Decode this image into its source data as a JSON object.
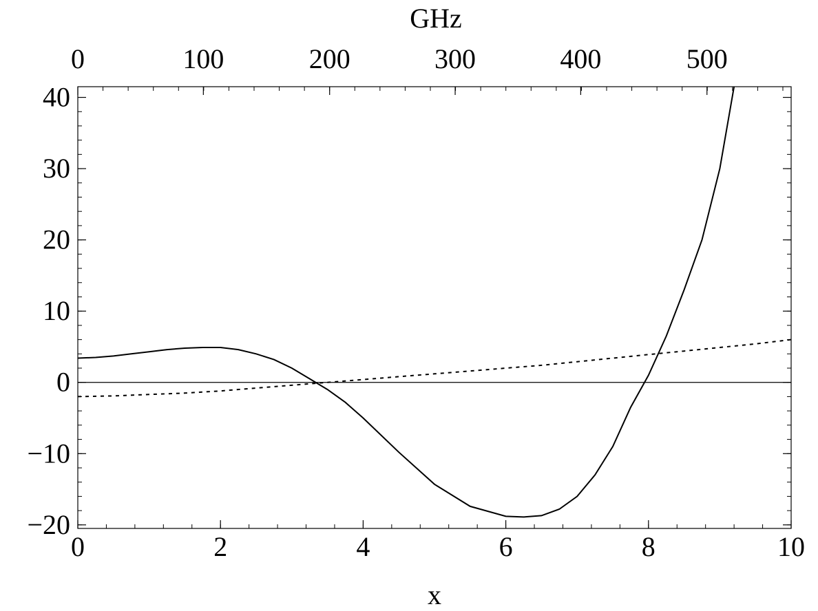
{
  "chart_data": {
    "type": "line",
    "xlabel": "x",
    "x2label": "GHz",
    "xlim": [
      0,
      10
    ],
    "ylim": [
      -20.5,
      41.5
    ],
    "x_ticks": [
      0,
      2,
      4,
      6,
      8,
      10
    ],
    "x2_ticks": [
      {
        "label": "0",
        "x": 0
      },
      {
        "label": "100",
        "x": 1.76
      },
      {
        "label": "200",
        "x": 3.53
      },
      {
        "label": "300",
        "x": 5.29
      },
      {
        "label": "400",
        "x": 7.05
      },
      {
        "label": "500",
        "x": 8.82
      }
    ],
    "y_ticks": [
      -20,
      -10,
      0,
      10,
      20,
      30,
      40
    ],
    "y_tick_labels": [
      "−20",
      "−10",
      "0",
      "10",
      "20",
      "30",
      "40"
    ],
    "reference_line_y": 0,
    "grid": false,
    "series": [
      {
        "style": "solid",
        "color": "#000000",
        "x": [
          0,
          0.25,
          0.5,
          0.75,
          1.0,
          1.25,
          1.5,
          1.75,
          2.0,
          2.25,
          2.5,
          2.75,
          3.0,
          3.25,
          3.5,
          3.75,
          4.0,
          4.5,
          5.0,
          5.5,
          6.0,
          6.25,
          6.5,
          6.75,
          7.0,
          7.25,
          7.5,
          7.75,
          8.0,
          8.25,
          8.5,
          8.75,
          9.0,
          9.2
        ],
        "y": [
          3.4,
          3.5,
          3.7,
          4.0,
          4.3,
          4.6,
          4.8,
          4.9,
          4.9,
          4.6,
          4.0,
          3.2,
          2.0,
          0.5,
          -1.0,
          -2.8,
          -5.0,
          -9.8,
          -14.3,
          -17.4,
          -18.8,
          -18.9,
          -18.7,
          -17.8,
          -16.0,
          -13.0,
          -9.0,
          -3.5,
          1.0,
          6.5,
          13.0,
          20.0,
          30.0,
          41.5
        ]
      },
      {
        "style": "dotted",
        "color": "#000000",
        "x": [
          0,
          0.5,
          1,
          1.5,
          2,
          2.5,
          3,
          3.5,
          4,
          4.5,
          5,
          5.5,
          6,
          6.5,
          7,
          7.5,
          8,
          8.5,
          9,
          9.5,
          10
        ],
        "y": [
          -2.0,
          -1.9,
          -1.7,
          -1.5,
          -1.2,
          -0.8,
          -0.4,
          0.0,
          0.4,
          0.8,
          1.2,
          1.6,
          2.0,
          2.4,
          2.9,
          3.4,
          3.9,
          4.4,
          4.9,
          5.4,
          6.0
        ]
      }
    ]
  }
}
